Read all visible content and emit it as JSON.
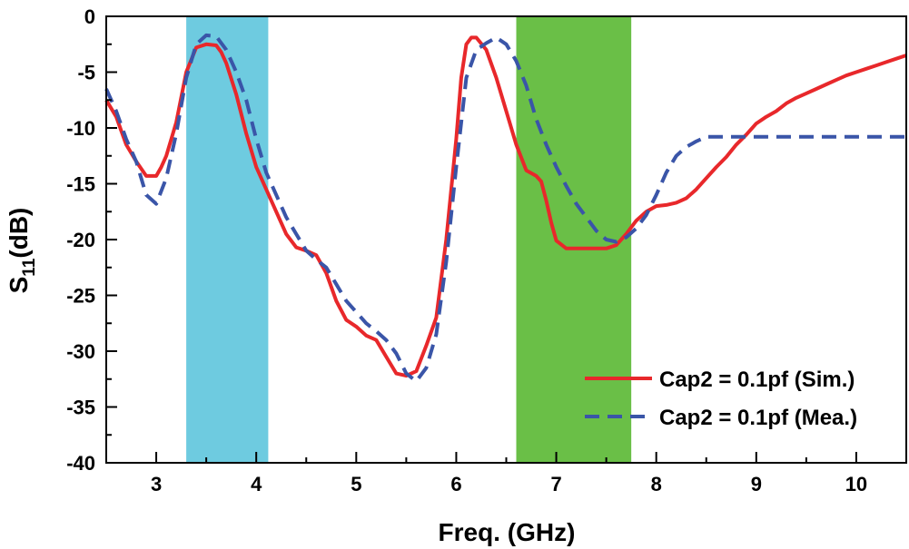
{
  "chart_data": {
    "type": "line",
    "title": "",
    "xlabel": "Freq. (GHz)",
    "ylabel_main": "S",
    "ylabel_sub": "11",
    "ylabel_unit": "(dB)",
    "xlim": [
      2.5,
      10.5
    ],
    "ylim": [
      -40,
      0
    ],
    "x_ticks": [
      3,
      4,
      5,
      6,
      7,
      8,
      9,
      10
    ],
    "x_tick_labels": [
      "3",
      "4",
      "5",
      "6",
      "7",
      "8",
      "9",
      "10"
    ],
    "y_ticks": [
      0,
      -5,
      -10,
      -15,
      -20,
      -25,
      -30,
      -35,
      -40
    ],
    "y_tick_labels": [
      "0",
      "-5",
      "-10",
      "-15",
      "-20",
      "-25",
      "-30",
      "-35",
      "-40"
    ],
    "grid": false,
    "legend_position": "bottom-right",
    "bands": [
      {
        "name": "band-low",
        "x_start": 3.3,
        "x_end": 4.12,
        "color": "#6ecbe0"
      },
      {
        "name": "band-high",
        "x_start": 6.6,
        "x_end": 7.75,
        "color": "#6abf47"
      }
    ],
    "series": [
      {
        "name": "Cap2 = 0.1pf (Sim.)",
        "color": "#e8282b",
        "dash": "solid",
        "x": [
          2.5,
          2.6,
          2.7,
          2.8,
          2.9,
          3.0,
          3.05,
          3.1,
          3.2,
          3.3,
          3.4,
          3.5,
          3.6,
          3.65,
          3.7,
          3.8,
          3.9,
          4.0,
          4.1,
          4.2,
          4.3,
          4.4,
          4.5,
          4.6,
          4.7,
          4.8,
          4.9,
          5.0,
          5.1,
          5.2,
          5.3,
          5.4,
          5.5,
          5.6,
          5.7,
          5.8,
          5.9,
          6.0,
          6.05,
          6.1,
          6.15,
          6.2,
          6.3,
          6.4,
          6.5,
          6.6,
          6.7,
          6.8,
          6.85,
          6.9,
          6.95,
          7.0,
          7.1,
          7.2,
          7.3,
          7.4,
          7.5,
          7.6,
          7.7,
          7.8,
          7.9,
          8.0,
          8.1,
          8.2,
          8.3,
          8.4,
          8.5,
          8.6,
          8.7,
          8.8,
          8.9,
          9.0,
          9.1,
          9.2,
          9.3,
          9.4,
          9.5,
          9.6,
          9.7,
          9.8,
          9.9,
          10.0,
          10.1,
          10.2,
          10.3,
          10.4,
          10.5
        ],
        "y": [
          -7.5,
          -9.0,
          -11.5,
          -13.0,
          -14.3,
          -14.3,
          -13.5,
          -12.5,
          -9.5,
          -5.0,
          -2.8,
          -2.5,
          -2.6,
          -3.2,
          -4.2,
          -7.0,
          -10.5,
          -13.5,
          -15.5,
          -17.5,
          -19.5,
          -20.7,
          -21.0,
          -21.4,
          -23.0,
          -25.5,
          -27.2,
          -27.8,
          -28.6,
          -29.0,
          -30.5,
          -32.0,
          -32.2,
          -31.8,
          -29.5,
          -27.0,
          -20.0,
          -11.0,
          -5.5,
          -2.5,
          -1.9,
          -1.9,
          -3.0,
          -5.5,
          -8.5,
          -11.5,
          -13.8,
          -14.3,
          -14.8,
          -16.5,
          -18.5,
          -20.1,
          -20.8,
          -20.8,
          -20.8,
          -20.8,
          -20.8,
          -20.5,
          -19.5,
          -18.3,
          -17.5,
          -17.0,
          -16.9,
          -16.7,
          -16.3,
          -15.5,
          -14.5,
          -13.5,
          -12.6,
          -11.5,
          -10.6,
          -9.6,
          -9.0,
          -8.5,
          -7.8,
          -7.3,
          -6.9,
          -6.5,
          -6.1,
          -5.7,
          -5.3,
          -5.0,
          -4.7,
          -4.4,
          -4.1,
          -3.8,
          -3.5
        ]
      },
      {
        "name": "Cap2 = 0.1pf (Mea.)",
        "color": "#3a55a8",
        "dash": "dashed",
        "x": [
          2.5,
          2.6,
          2.7,
          2.8,
          2.9,
          3.0,
          3.1,
          3.2,
          3.3,
          3.4,
          3.5,
          3.6,
          3.7,
          3.8,
          3.9,
          4.0,
          4.1,
          4.2,
          4.3,
          4.4,
          4.5,
          4.6,
          4.7,
          4.8,
          4.9,
          5.0,
          5.1,
          5.2,
          5.3,
          5.4,
          5.5,
          5.6,
          5.7,
          5.8,
          5.9,
          6.0,
          6.1,
          6.2,
          6.3,
          6.4,
          6.5,
          6.6,
          6.7,
          6.8,
          6.9,
          7.0,
          7.1,
          7.2,
          7.3,
          7.4,
          7.5,
          7.6,
          7.7,
          7.8,
          7.9,
          8.0,
          8.1,
          8.2,
          8.3,
          8.4,
          8.5,
          8.6,
          8.7,
          8.8,
          8.9,
          9.0,
          9.1,
          9.2,
          9.3,
          9.4,
          9.5,
          9.6,
          9.7,
          9.8,
          9.9,
          10.0,
          10.1,
          10.2,
          10.3,
          10.4,
          10.5
        ],
        "y": [
          -6.5,
          -8.5,
          -11.0,
          -13.0,
          -16.0,
          -16.8,
          -14.5,
          -10.5,
          -5.5,
          -2.5,
          -1.7,
          -1.8,
          -3.0,
          -5.0,
          -7.5,
          -11.0,
          -14.0,
          -16.0,
          -18.0,
          -19.5,
          -21.0,
          -21.8,
          -22.5,
          -24.0,
          -25.5,
          -26.5,
          -27.5,
          -28.2,
          -29.0,
          -30.2,
          -32.0,
          -32.7,
          -31.5,
          -28.5,
          -22.0,
          -13.5,
          -5.5,
          -3.0,
          -2.4,
          -1.9,
          -2.5,
          -4.0,
          -6.2,
          -9.2,
          -11.5,
          -13.5,
          -15.2,
          -16.8,
          -18.0,
          -19.2,
          -20.0,
          -20.2,
          -19.8,
          -19.0,
          -17.8,
          -16.0,
          -14.0,
          -12.5,
          -11.7,
          -11.2,
          -10.8,
          -10.8,
          -10.8,
          -10.8,
          -10.8,
          -10.8,
          -10.8,
          -10.8,
          -10.8,
          -10.8,
          -10.8,
          -10.8,
          -10.8,
          -10.8,
          -10.8,
          -10.8,
          -10.8,
          -10.8,
          -10.8,
          -10.8,
          -10.8
        ]
      }
    ]
  }
}
